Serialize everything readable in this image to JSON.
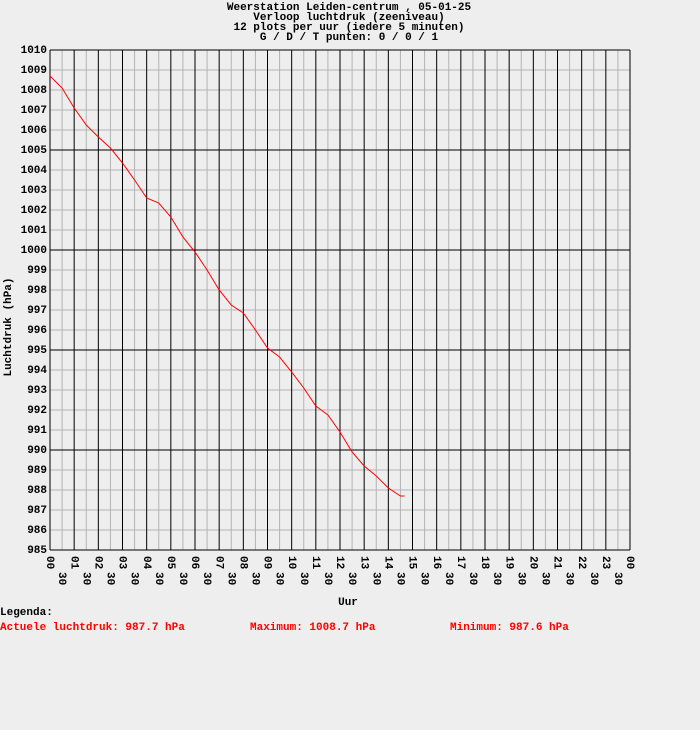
{
  "chart_data": {
    "type": "line",
    "title": "Weerstation Leiden-centrum , 05-01-25",
    "subtitle": [
      "Verloop luchtdruk (zeeniveau)",
      "12 plots per uur (iedere 5 minuten)",
      "G / D / T punten: 0 / 0 / 1"
    ],
    "xlabel": "Uur",
    "ylabel": "Luchtdruk (hPa)",
    "x": [
      0,
      0.5,
      1,
      1.5,
      2,
      2.5,
      3,
      3.5,
      4,
      4.5,
      5,
      5.5,
      6,
      6.5,
      7,
      7.5,
      8,
      8.5,
      9,
      9.5,
      10,
      10.5,
      11,
      11.5,
      12,
      12.5,
      13,
      13.5,
      14,
      14.5,
      14.67
    ],
    "series": [
      {
        "name": "Actuele luchtdruk",
        "color": "#ff0000",
        "values": [
          1008.7,
          1008.1,
          1007.1,
          1006.25,
          1005.65,
          1005.1,
          1004.35,
          1003.5,
          1002.6,
          1002.35,
          1001.65,
          1000.65,
          999.9,
          999.0,
          998.0,
          997.25,
          996.85,
          996.0,
          995.1,
          994.65,
          993.9,
          993.1,
          992.2,
          991.75,
          990.9,
          989.9,
          989.2,
          988.7,
          988.1,
          987.7,
          987.7
        ]
      }
    ],
    "xlim": [
      0,
      24
    ],
    "ylim": [
      985,
      1010
    ],
    "yticks": [
      985,
      986,
      987,
      988,
      989,
      990,
      991,
      992,
      993,
      994,
      995,
      996,
      997,
      998,
      999,
      1000,
      1001,
      1002,
      1003,
      1004,
      1005,
      1006,
      1007,
      1008,
      1009,
      1010
    ],
    "xticks": [
      {
        "value": 0,
        "label": "00"
      },
      {
        "value": 0.5,
        "label": "30"
      },
      {
        "value": 1,
        "label": "01"
      },
      {
        "value": 1.5,
        "label": "30"
      },
      {
        "value": 2,
        "label": "02"
      },
      {
        "value": 2.5,
        "label": "30"
      },
      {
        "value": 3,
        "label": "03"
      },
      {
        "value": 3.5,
        "label": "30"
      },
      {
        "value": 4,
        "label": "04"
      },
      {
        "value": 4.5,
        "label": "30"
      },
      {
        "value": 5,
        "label": "05"
      },
      {
        "value": 5.5,
        "label": "30"
      },
      {
        "value": 6,
        "label": "06"
      },
      {
        "value": 6.5,
        "label": "30"
      },
      {
        "value": 7,
        "label": "07"
      },
      {
        "value": 7.5,
        "label": "30"
      },
      {
        "value": 8,
        "label": "08"
      },
      {
        "value": 8.5,
        "label": "30"
      },
      {
        "value": 9,
        "label": "09"
      },
      {
        "value": 9.5,
        "label": "30"
      },
      {
        "value": 10,
        "label": "10"
      },
      {
        "value": 10.5,
        "label": "30"
      },
      {
        "value": 11,
        "label": "11"
      },
      {
        "value": 11.5,
        "label": "30"
      },
      {
        "value": 12,
        "label": "12"
      },
      {
        "value": 12.5,
        "label": "30"
      },
      {
        "value": 13,
        "label": "13"
      },
      {
        "value": 13.5,
        "label": "30"
      },
      {
        "value": 14,
        "label": "14"
      },
      {
        "value": 14.5,
        "label": "30"
      },
      {
        "value": 15,
        "label": "15"
      },
      {
        "value": 15.5,
        "label": "30"
      },
      {
        "value": 16,
        "label": "16"
      },
      {
        "value": 16.5,
        "label": "30"
      },
      {
        "value": 17,
        "label": "17"
      },
      {
        "value": 17.5,
        "label": "30"
      },
      {
        "value": 18,
        "label": "18"
      },
      {
        "value": 18.5,
        "label": "30"
      },
      {
        "value": 19,
        "label": "19"
      },
      {
        "value": 19.5,
        "label": "30"
      },
      {
        "value": 20,
        "label": "20"
      },
      {
        "value": 20.5,
        "label": "30"
      },
      {
        "value": 21,
        "label": "21"
      },
      {
        "value": 21.5,
        "label": "30"
      },
      {
        "value": 22,
        "label": "22"
      },
      {
        "value": 22.5,
        "label": "30"
      },
      {
        "value": 23,
        "label": "23"
      },
      {
        "value": 23.5,
        "label": "30"
      },
      {
        "value": 24,
        "label": "00"
      }
    ],
    "grid": true,
    "legend": {
      "title": "Legenda:",
      "entries": [
        "Actuele luchtdruk: 987.7 hPa",
        "Maximum: 1008.7 hPa",
        "Minimum: 987.6 hPa"
      ],
      "color": "#ff0000"
    }
  }
}
